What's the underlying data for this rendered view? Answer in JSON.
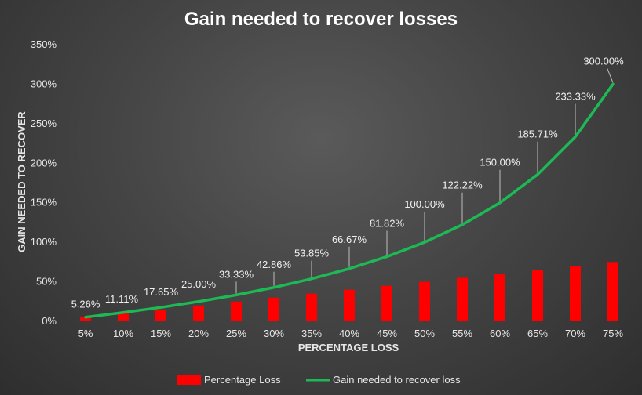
{
  "chart_data": {
    "type": "bar+line",
    "title": "Gain needed to recover losses",
    "xlabel": "PERCENTAGE LOSS",
    "ylabel": "GAIN NEEDED TO RECOVER",
    "categories": [
      "5%",
      "10%",
      "15%",
      "20%",
      "25%",
      "30%",
      "35%",
      "40%",
      "45%",
      "50%",
      "55%",
      "60%",
      "65%",
      "70%",
      "75%"
    ],
    "yticks": [
      "0%",
      "50%",
      "100%",
      "150%",
      "200%",
      "250%",
      "300%",
      "350%"
    ],
    "ylim": [
      0,
      350
    ],
    "grid": false,
    "legend_position": "bottom",
    "series": [
      {
        "name": "Percentage Loss",
        "type": "bar",
        "color": "#ff0000",
        "values": [
          5,
          10,
          15,
          20,
          25,
          30,
          35,
          40,
          45,
          50,
          55,
          60,
          65,
          70,
          75
        ]
      },
      {
        "name": "Gain needed to recover loss",
        "type": "line",
        "color": "#1db954",
        "values": [
          5.26,
          11.11,
          17.65,
          25.0,
          33.33,
          42.86,
          53.85,
          66.67,
          81.82,
          100.0,
          122.22,
          150.0,
          185.71,
          233.33,
          300.0
        ],
        "labels": [
          "5.26%",
          "11.11%",
          "17.65%",
          "25.00%",
          "33.33%",
          "42.86%",
          "53.85%",
          "66.67%",
          "81.82%",
          "100.00%",
          "122.22%",
          "150.00%",
          "185.71%",
          "233.33%",
          "300.00%"
        ]
      }
    ]
  }
}
